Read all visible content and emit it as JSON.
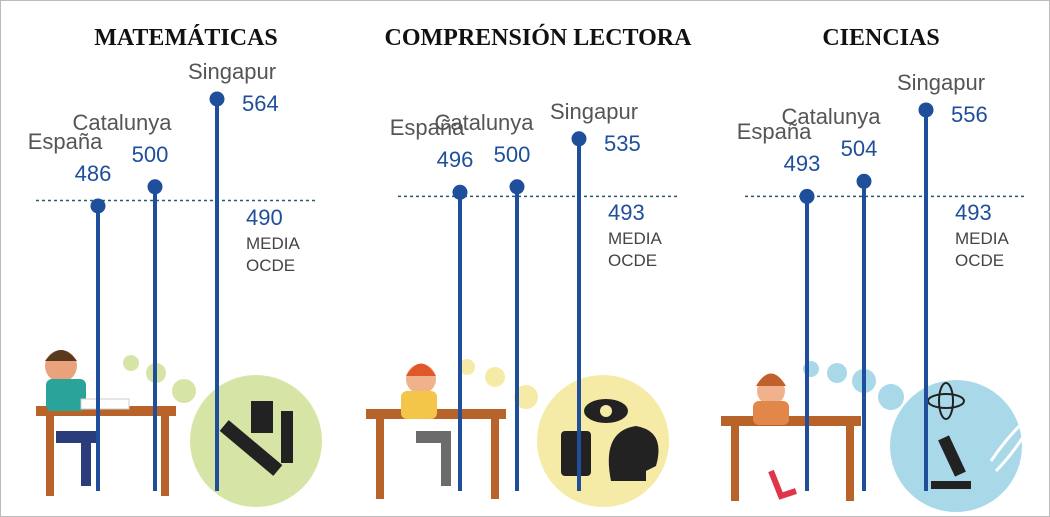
{
  "chart_data": [
    {
      "type": "lollipop",
      "title": "MATEMÁTICAS",
      "categories": [
        "España",
        "Catalunya",
        "Singapur"
      ],
      "values": [
        486,
        500,
        564
      ],
      "color": "#1f4e9a",
      "reference": {
        "value": 490,
        "label": "MEDIA OCDE"
      }
    },
    {
      "type": "lollipop",
      "title": "COMPRENSIÓN LECTORA",
      "categories": [
        "España",
        "Catalunya",
        "Singapur"
      ],
      "values": [
        496,
        500,
        535
      ],
      "color": "#1f4e9a",
      "reference": {
        "value": 493,
        "label": "MEDIA OCDE"
      }
    },
    {
      "type": "lollipop",
      "title": "CIENCIAS",
      "categories": [
        "España",
        "Catalunya",
        "Singapur"
      ],
      "values": [
        493,
        504,
        556
      ],
      "color": "#1f4e9a",
      "reference": {
        "value": 493,
        "label": "MEDIA OCDE"
      }
    }
  ]
}
